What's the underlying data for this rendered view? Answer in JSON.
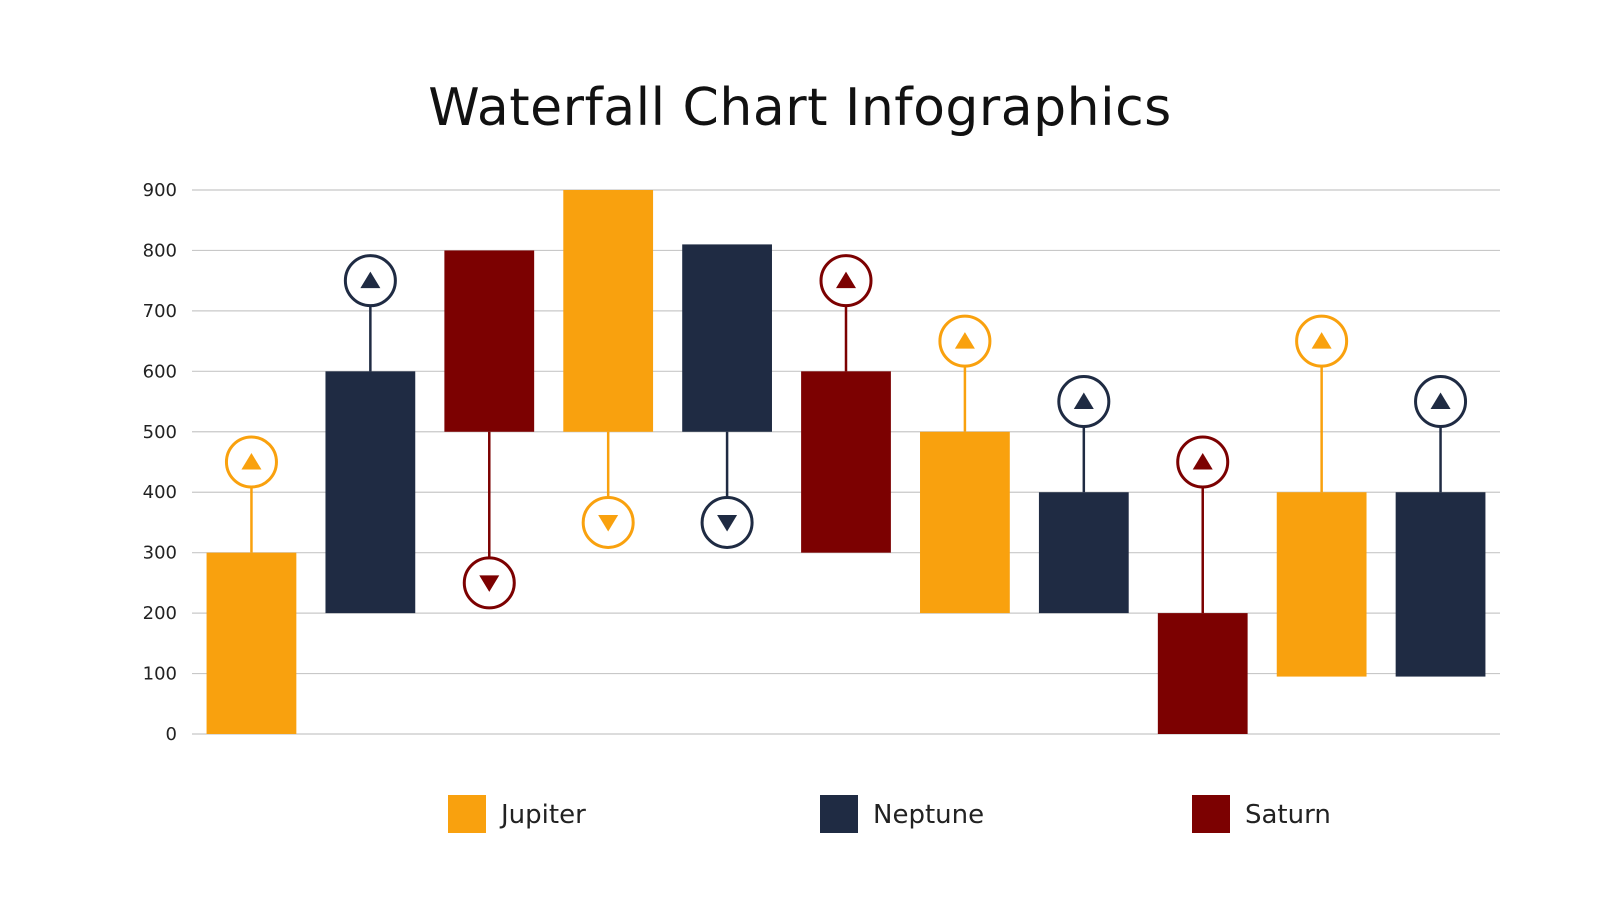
{
  "chart_data": {
    "type": "bar",
    "title": "Waterfall Chart Infographics",
    "xlabel": "",
    "ylabel": "",
    "ylim": [
      0,
      900
    ],
    "yticks": [
      0,
      100,
      200,
      300,
      400,
      500,
      600,
      700,
      800,
      900
    ],
    "grid": true,
    "legend_position": "bottom",
    "series": [
      {
        "name": "Jupiter",
        "color": "#F9A10E"
      },
      {
        "name": "Neptune",
        "color": "#1F2B43"
      },
      {
        "name": "Saturn",
        "color": "#7C0101"
      }
    ],
    "bars": [
      {
        "series": "Jupiter",
        "start": 0,
        "end": 300,
        "direction": "up",
        "marker": 450
      },
      {
        "series": "Neptune",
        "start": 200,
        "end": 600,
        "direction": "up",
        "marker": 750
      },
      {
        "series": "Saturn",
        "start": 800,
        "end": 500,
        "direction": "down",
        "marker": 250
      },
      {
        "series": "Jupiter",
        "start": 900,
        "end": 500,
        "direction": "down",
        "marker": 350
      },
      {
        "series": "Neptune",
        "start": 810,
        "end": 500,
        "direction": "down",
        "marker": 350
      },
      {
        "series": "Saturn",
        "start": 300,
        "end": 600,
        "direction": "up",
        "marker": 750
      },
      {
        "series": "Jupiter",
        "start": 200,
        "end": 500,
        "direction": "up",
        "marker": 650
      },
      {
        "series": "Neptune",
        "start": 200,
        "end": 400,
        "direction": "up",
        "marker": 550
      },
      {
        "series": "Saturn",
        "start": 0,
        "end": 200,
        "direction": "up",
        "marker": 450
      },
      {
        "series": "Jupiter",
        "start": 95,
        "end": 400,
        "direction": "up",
        "marker": 650
      },
      {
        "series": "Neptune",
        "start": 95,
        "end": 400,
        "direction": "up",
        "marker": 550
      }
    ]
  }
}
